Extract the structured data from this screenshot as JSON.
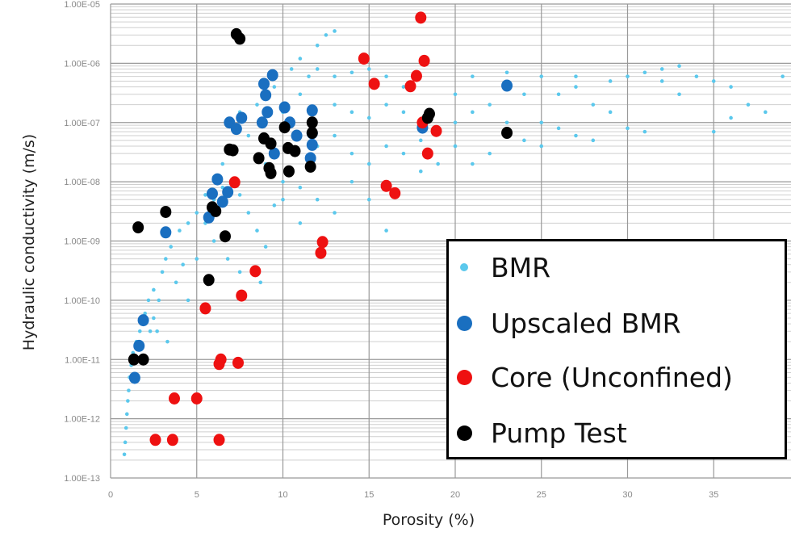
{
  "chart_data": {
    "type": "scatter",
    "title": "",
    "xlabel": "Porosity (%)",
    "ylabel": "Hydraulic conductivity (m/s)",
    "xlim": [
      0,
      39.5
    ],
    "ylim": [
      1e-13,
      1e-05
    ],
    "yscale": "log",
    "grid": true,
    "legend_position": "bottom-right",
    "x_ticks": [
      "0",
      "5",
      "10",
      "15",
      "20",
      "25",
      "30",
      "35"
    ],
    "y_ticks": [
      "1.00E-05",
      "1.00E-06",
      "1.00E-07",
      "1.00E-08",
      "1.00E-09",
      "1.00E-10",
      "1.00E-11",
      "1.00E-12",
      "1.00E-13"
    ],
    "series": [
      {
        "name": "BMR",
        "color": "#5bc8ec",
        "marker": "small",
        "points": [
          [
            0.8,
            2.5e-13
          ],
          [
            0.85,
            4e-13
          ],
          [
            0.9,
            7e-13
          ],
          [
            0.95,
            1.2e-12
          ],
          [
            1.0,
            2e-12
          ],
          [
            1.05,
            3e-12
          ],
          [
            1.1,
            5e-12
          ],
          [
            1.2,
            8e-12
          ],
          [
            1.3,
            1.3e-11
          ],
          [
            1.5,
            2e-11
          ],
          [
            1.7,
            3e-11
          ],
          [
            2.0,
            6e-11
          ],
          [
            2.2,
            1e-10
          ],
          [
            2.5,
            1.5e-10
          ],
          [
            2.3,
            3e-11
          ],
          [
            2.7,
            3e-11
          ],
          [
            3.3,
            2e-11
          ],
          [
            2.5,
            5e-11
          ],
          [
            3.0,
            3e-10
          ],
          [
            3.2,
            5e-10
          ],
          [
            3.5,
            8e-10
          ],
          [
            4.0,
            1.5e-09
          ],
          [
            2.8,
            1e-10
          ],
          [
            3.8,
            2e-10
          ],
          [
            4.5,
            1e-10
          ],
          [
            4.2,
            4e-10
          ],
          [
            5.0,
            3e-09
          ],
          [
            5.0,
            5e-10
          ],
          [
            5.5,
            6e-09
          ],
          [
            6.0,
            1.2e-08
          ],
          [
            6.5,
            2e-08
          ],
          [
            7.0,
            4e-08
          ],
          [
            6.0,
            1e-09
          ],
          [
            7.5,
            6e-09
          ],
          [
            8.0,
            3e-09
          ],
          [
            8.5,
            1.5e-09
          ],
          [
            9.0,
            8e-10
          ],
          [
            8.7,
            2e-10
          ],
          [
            9.5,
            4e-09
          ],
          [
            7.5,
            3e-10
          ],
          [
            6.8,
            5e-10
          ],
          [
            10,
            1e-08
          ],
          [
            10,
            5e-09
          ],
          [
            11,
            8e-09
          ],
          [
            12,
            5e-09
          ],
          [
            13,
            3e-09
          ],
          [
            14,
            1e-08
          ],
          [
            15,
            5e-09
          ],
          [
            16,
            1.5e-09
          ],
          [
            11,
            2e-09
          ],
          [
            9,
            2e-08
          ],
          [
            8,
            6e-08
          ],
          [
            7.5,
            1.5e-07
          ],
          [
            8.5,
            2e-07
          ],
          [
            9.5,
            4e-07
          ],
          [
            10.5,
            8e-07
          ],
          [
            11,
            1.2e-06
          ],
          [
            12,
            2e-06
          ],
          [
            12.5,
            3e-06
          ],
          [
            13,
            3.5e-06
          ],
          [
            11.5,
            6e-07
          ],
          [
            12,
            8e-07
          ],
          [
            13,
            6e-07
          ],
          [
            14,
            7e-07
          ],
          [
            15,
            8e-07
          ],
          [
            13,
            2e-07
          ],
          [
            14,
            1.5e-07
          ],
          [
            15,
            1.2e-07
          ],
          [
            16,
            2e-07
          ],
          [
            17,
            1.5e-07
          ],
          [
            12,
            4e-08
          ],
          [
            13,
            6e-08
          ],
          [
            14,
            3e-08
          ],
          [
            15,
            2e-08
          ],
          [
            16,
            4e-08
          ],
          [
            17,
            3e-08
          ],
          [
            18,
            1.5e-08
          ],
          [
            19,
            2e-08
          ],
          [
            18,
            5e-08
          ],
          [
            19,
            8e-08
          ],
          [
            20,
            1e-07
          ],
          [
            20,
            4e-08
          ],
          [
            21,
            2e-08
          ],
          [
            22,
            3e-08
          ],
          [
            21,
            1.5e-07
          ],
          [
            22,
            2e-07
          ],
          [
            23,
            1e-07
          ],
          [
            24,
            5e-08
          ],
          [
            25,
            4e-08
          ],
          [
            26,
            8e-08
          ],
          [
            27,
            6e-08
          ],
          [
            28,
            5e-08
          ],
          [
            25,
            1e-07
          ],
          [
            26,
            3e-07
          ],
          [
            27,
            4e-07
          ],
          [
            28,
            2e-07
          ],
          [
            29,
            1.5e-07
          ],
          [
            30,
            8e-08
          ],
          [
            31,
            7e-08
          ],
          [
            25,
            6e-07
          ],
          [
            27,
            6e-07
          ],
          [
            29,
            5e-07
          ],
          [
            30,
            6e-07
          ],
          [
            31,
            7e-07
          ],
          [
            32,
            8e-07
          ],
          [
            33,
            9e-07
          ],
          [
            34,
            6e-07
          ],
          [
            35,
            5e-07
          ],
          [
            36,
            4e-07
          ],
          [
            37,
            2e-07
          ],
          [
            38,
            1.5e-07
          ],
          [
            39,
            6e-07
          ],
          [
            33,
            3e-07
          ],
          [
            35,
            7e-08
          ],
          [
            36,
            1.2e-07
          ],
          [
            32,
            5e-07
          ],
          [
            23,
            7e-07
          ],
          [
            24,
            3e-07
          ],
          [
            21,
            6e-07
          ],
          [
            20,
            3e-07
          ],
          [
            17,
            4e-07
          ],
          [
            16,
            6e-07
          ],
          [
            10,
            1.5e-07
          ],
          [
            11,
            3e-07
          ],
          [
            9,
            1e-07
          ],
          [
            6,
            5e-09
          ],
          [
            5.5,
            2e-09
          ],
          [
            4.5,
            2e-09
          ],
          [
            6.5,
            8e-09
          ]
        ]
      },
      {
        "name": "Upscaled BMR",
        "color": "#1a6fc0",
        "marker": "large",
        "points": [
          [
            23.0,
            4.2e-07
          ],
          [
            9.4,
            6.3e-07
          ],
          [
            8.9,
            4.5e-07
          ],
          [
            9.0,
            2.9e-07
          ],
          [
            9.1,
            1.5e-07
          ],
          [
            8.8,
            1e-07
          ],
          [
            7.6,
            1.2e-07
          ],
          [
            6.9,
            1e-07
          ],
          [
            7.3,
            7.8e-08
          ],
          [
            10.1,
            1.8e-07
          ],
          [
            10.4,
            1e-07
          ],
          [
            10.8,
            6e-08
          ],
          [
            11.7,
            1.6e-07
          ],
          [
            11.7,
            6.6e-08
          ],
          [
            11.7,
            4.2e-08
          ],
          [
            11.6,
            2.5e-08
          ],
          [
            9.5,
            3e-08
          ],
          [
            6.2,
            1.1e-08
          ],
          [
            5.9,
            6.3e-09
          ],
          [
            6.8,
            6.7e-09
          ],
          [
            6.5,
            4.6e-09
          ],
          [
            5.7,
            2.5e-09
          ],
          [
            3.2,
            1.4e-09
          ],
          [
            1.9,
            4.6e-11
          ],
          [
            1.65,
            1.7e-11
          ],
          [
            1.4,
            4.9e-12
          ],
          [
            18.1,
            8.2e-08
          ]
        ]
      },
      {
        "name": "Core (Unconfined)",
        "color": "#ee1111",
        "marker": "large",
        "points": [
          [
            18.0,
            5.9e-06
          ],
          [
            14.7,
            1.2e-06
          ],
          [
            18.2,
            1.1e-06
          ],
          [
            15.3,
            4.5e-07
          ],
          [
            17.75,
            6.1e-07
          ],
          [
            17.4,
            4.1e-07
          ],
          [
            18.9,
            7.2e-08
          ],
          [
            18.4,
            3e-08
          ],
          [
            16.0,
            8.5e-09
          ],
          [
            16.5,
            6.4e-09
          ],
          [
            7.2,
            9.8e-09
          ],
          [
            12.3,
            9.6e-10
          ],
          [
            12.2,
            6.3e-10
          ],
          [
            8.4,
            3.1e-10
          ],
          [
            7.6,
            1.2e-10
          ],
          [
            5.5,
            7.3e-11
          ],
          [
            6.4,
            1e-11
          ],
          [
            6.3,
            8.4e-12
          ],
          [
            7.4,
            8.8e-12
          ],
          [
            3.7,
            2.2e-12
          ],
          [
            5.0,
            2.2e-12
          ],
          [
            2.6,
            4.4e-13
          ],
          [
            3.6,
            4.4e-13
          ],
          [
            6.3,
            4.4e-13
          ],
          [
            18.1,
            1e-07
          ]
        ]
      },
      {
        "name": "Pump Test",
        "color": "#000000",
        "marker": "large",
        "points": [
          [
            7.3,
            3.1e-06
          ],
          [
            7.5,
            2.6e-06
          ],
          [
            1.6,
            1.7e-09
          ],
          [
            3.2,
            3.1e-09
          ],
          [
            5.9,
            3.7e-09
          ],
          [
            6.1,
            3.2e-09
          ],
          [
            6.65,
            1.2e-09
          ],
          [
            5.7,
            2.2e-10
          ],
          [
            1.35,
            1e-11
          ],
          [
            1.9,
            1e-11
          ],
          [
            6.9,
            3.5e-08
          ],
          [
            7.1,
            3.4e-08
          ],
          [
            8.6,
            2.5e-08
          ],
          [
            8.9,
            5.4e-08
          ],
          [
            9.3,
            4.4e-08
          ],
          [
            9.2,
            1.7e-08
          ],
          [
            9.3,
            1.4e-08
          ],
          [
            10.1,
            8.3e-08
          ],
          [
            10.3,
            3.7e-08
          ],
          [
            10.7,
            3.3e-08
          ],
          [
            10.35,
            1.5e-08
          ],
          [
            11.6,
            1.8e-08
          ],
          [
            11.7,
            1e-07
          ],
          [
            11.7,
            6.7e-08
          ],
          [
            18.5,
            1.4e-07
          ],
          [
            18.4,
            1.2e-07
          ],
          [
            23.0,
            6.7e-08
          ]
        ]
      }
    ]
  }
}
